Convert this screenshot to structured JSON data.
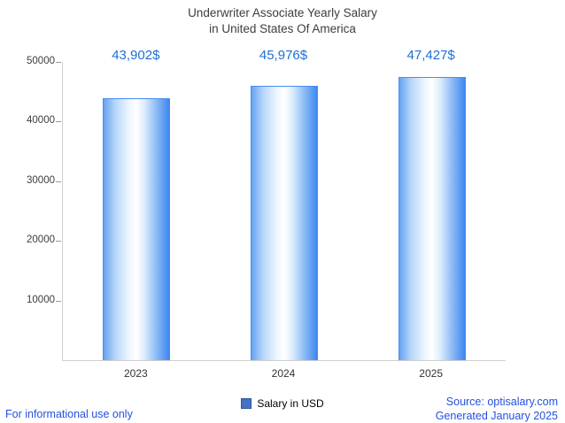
{
  "title": {
    "line1": "Underwriter Associate Yearly Salary",
    "line2": "in United States Of America"
  },
  "chart_data": {
    "type": "bar",
    "title": "Underwriter Associate Yearly Salary in United States Of America",
    "categories": [
      "2023",
      "2024",
      "2025"
    ],
    "values": [
      43902,
      45976,
      47427
    ],
    "value_labels": [
      "43,902$",
      "45,976$",
      "47,427$"
    ],
    "xlabel": "",
    "ylabel": "",
    "ylim": [
      0,
      50000
    ],
    "yticks": [
      10000,
      20000,
      30000,
      40000,
      50000
    ],
    "grid": false,
    "legend_position": "bottom",
    "legend": [
      "Salary in USD"
    ],
    "bar_border_color": "#4a8cf0",
    "bar_main_color": "#3f87ef"
  },
  "legend": {
    "label": "Salary in USD",
    "swatch_color": "#4472c4"
  },
  "footer": {
    "left": "For informational use only",
    "source": "Source: optisalary.com",
    "generated": "Generated January 2025"
  },
  "colors": {
    "value_label": "#1e6fd6",
    "footer_text": "#2451e0",
    "title": "#3d3d3d",
    "axis_line": "#cfcfcf"
  }
}
